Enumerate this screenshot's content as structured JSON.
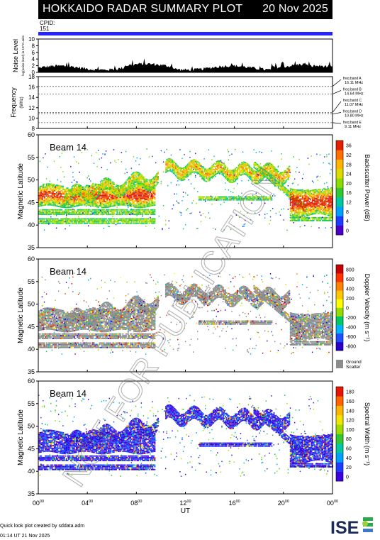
{
  "header": {
    "title": "HOKKAIDO RADAR SUMMARY PLOT",
    "date": "20 Nov 2025"
  },
  "cpid": {
    "label": "CPID:",
    "value": "151"
  },
  "noise": {
    "ylabel": "Noise Level",
    "ylabel_sub": "log(noise level) in 10^2 units",
    "ticks": [
      "0",
      "2",
      "4",
      "6",
      "8",
      "10"
    ],
    "ylim": [
      0,
      10
    ]
  },
  "frequency": {
    "ylabel": "Frequency",
    "ylabel_unit": "(MHz)",
    "ticks": [
      "8",
      "10",
      "12",
      "14",
      "16",
      "18"
    ],
    "ylim": [
      8,
      18
    ],
    "bands": [
      {
        "name": "freq band A",
        "freq": "16.11 MHz",
        "mhz": 16.11
      },
      {
        "name": "freq band B",
        "freq": "14.64 MHz",
        "mhz": 14.64
      },
      {
        "name": "freq band C",
        "freq": "11.07 MHz",
        "mhz": 11.07
      },
      {
        "name": "freq band D",
        "freq": "10.80 MHz",
        "mhz": 10.8
      },
      {
        "name": "freq band E",
        "freq": "9.11 MHz",
        "mhz": 9.11
      }
    ]
  },
  "panels": [
    {
      "beam": "Beam 14",
      "ylabel": "Magnetic Latitude",
      "ticks": [
        "35",
        "40",
        "45",
        "50",
        "55",
        "60"
      ],
      "cbar_label": "Backscatter Power (dB)",
      "cbar_ticks": [
        "0",
        "4",
        "8",
        "12",
        "16",
        "20",
        "24",
        "28",
        "32",
        "36"
      ],
      "cbar_colors": [
        "#4b00c8",
        "#1e3cff",
        "#00a0ff",
        "#00c8a0",
        "#32c832",
        "#8cdc00",
        "#dcdc00",
        "#ffb400",
        "#ff6e00",
        "#e61e00"
      ]
    },
    {
      "beam": "Beam 14",
      "ylabel": "Magnetic Latitude",
      "ticks": [
        "35",
        "40",
        "45",
        "50",
        "55",
        "60"
      ],
      "cbar_label": "Doppler Velocity (m s⁻¹)",
      "cbar_ticks": [
        "800",
        "600",
        "400",
        "200",
        "0",
        "-200",
        "-400",
        "-600",
        "-800"
      ],
      "cbar_colors": [
        "#2800c8",
        "#1e50ff",
        "#00b4ff",
        "#00c864",
        "#96dc00",
        "#ffff00",
        "#ffc800",
        "#ff8200",
        "#ff3200",
        "#c80000"
      ],
      "ground_scatter_label": [
        "Ground",
        "Scatter"
      ],
      "ground_scatter_color": "#8c8c8c"
    },
    {
      "beam": "Beam 14",
      "ylabel": "Magnetic Latitude",
      "ticks": [
        "35",
        "40",
        "45",
        "50",
        "55",
        "60"
      ],
      "cbar_label": "Spectral Width (m s⁻¹)",
      "cbar_ticks": [
        "0",
        "20",
        "40",
        "60",
        "80",
        "100",
        "120",
        "140",
        "160",
        "180"
      ],
      "cbar_colors": [
        "#3c00dc",
        "#1e3cff",
        "#00a0ff",
        "#00c8a0",
        "#32c832",
        "#a0dc00",
        "#f0e600",
        "#ffb400",
        "#ff6400",
        "#e61400"
      ]
    }
  ],
  "xaxis": {
    "label": "UT",
    "ticks": [
      "00",
      "04",
      "08",
      "12",
      "16",
      "20",
      "00"
    ],
    "tick_sup": "00"
  },
  "watermark": "NOT FOR PUBLICATION",
  "logo": "ISEE",
  "footer": {
    "line1": "Quick look plot created by sddata.adm",
    "line2": "01:14 UT 21 Nov 2025"
  },
  "chart_data": [
    {
      "type": "area",
      "title": "Noise Level",
      "x": "UT hours 0-24",
      "ylim": [
        0,
        10
      ]
    },
    {
      "type": "line",
      "title": "Frequency",
      "ylabel": "Frequency (MHz)",
      "ylim": [
        8,
        18
      ],
      "series": [
        {
          "name": "freq band A",
          "values": [
            16.11
          ]
        },
        {
          "name": "freq band B",
          "values": [
            14.64
          ]
        },
        {
          "name": "freq band C",
          "values": [
            11.07
          ]
        },
        {
          "name": "freq band D",
          "values": [
            10.8
          ]
        },
        {
          "name": "freq band E",
          "values": [
            9.11
          ]
        }
      ]
    },
    {
      "type": "heatmap",
      "title": "Backscatter Power",
      "xlabel": "UT",
      "ylabel": "Magnetic Latitude",
      "xlim": [
        0,
        24
      ],
      "ylim": [
        35,
        60
      ],
      "clim": [
        0,
        36
      ]
    },
    {
      "type": "heatmap",
      "title": "Doppler Velocity",
      "xlabel": "UT",
      "ylabel": "Magnetic Latitude",
      "xlim": [
        0,
        24
      ],
      "ylim": [
        35,
        60
      ],
      "clim": [
        -800,
        800
      ]
    },
    {
      "type": "heatmap",
      "title": "Spectral Width",
      "xlabel": "UT",
      "ylabel": "Magnetic Latitude",
      "xlim": [
        0,
        24
      ],
      "ylim": [
        35,
        60
      ],
      "clim": [
        0,
        180
      ]
    }
  ]
}
